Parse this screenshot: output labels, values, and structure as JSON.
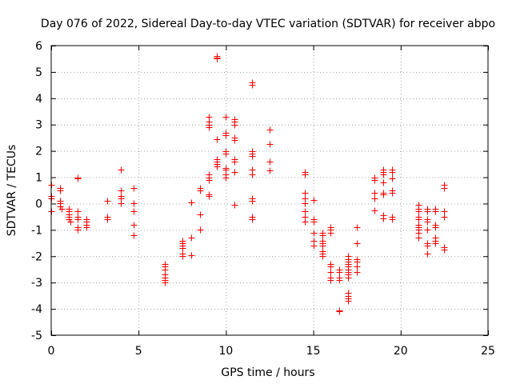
{
  "chart_data": {
    "type": "scatter",
    "title": "Day 076 of 2022, Sidereal Day-to-day VTEC variation (SDTVAR) for receiver abpo",
    "xlabel": "GPS time / hours",
    "ylabel": "SDTVAR / TECUs",
    "xlim": [
      0,
      25
    ],
    "ylim": [
      -5,
      6
    ],
    "xticks": [
      0,
      5,
      10,
      15,
      20,
      25
    ],
    "yticks": [
      -5,
      -4,
      -3,
      -2,
      -1,
      0,
      1,
      2,
      3,
      4,
      5,
      6
    ],
    "grid": true,
    "marker": "plus",
    "color": "#ff0000",
    "series": [
      {
        "name": "SDTVAR",
        "points": [
          [
            0.0,
            0.7
          ],
          [
            0.0,
            0.3
          ],
          [
            0.0,
            0.2
          ],
          [
            0.0,
            -0.3
          ],
          [
            0.5,
            0.6
          ],
          [
            0.5,
            0.5
          ],
          [
            0.5,
            0.1
          ],
          [
            0.5,
            0.0
          ],
          [
            0.5,
            -0.1
          ],
          [
            0.6,
            -0.2
          ],
          [
            1.0,
            -0.2
          ],
          [
            1.0,
            -0.3
          ],
          [
            1.0,
            -0.4
          ],
          [
            1.0,
            -0.5
          ],
          [
            1.0,
            -0.6
          ],
          [
            1.1,
            -0.7
          ],
          [
            1.5,
            1.0
          ],
          [
            1.5,
            0.95
          ],
          [
            1.5,
            -0.3
          ],
          [
            1.5,
            -0.5
          ],
          [
            1.5,
            -0.6
          ],
          [
            1.5,
            -0.9
          ],
          [
            1.5,
            -1.0
          ],
          [
            2.0,
            -0.6
          ],
          [
            2.0,
            -0.7
          ],
          [
            2.0,
            -0.8
          ],
          [
            2.0,
            -0.9
          ],
          [
            3.2,
            0.1
          ],
          [
            3.2,
            -0.5
          ],
          [
            3.2,
            -0.6
          ],
          [
            4.0,
            1.3
          ],
          [
            4.0,
            0.5
          ],
          [
            4.0,
            0.3
          ],
          [
            4.0,
            0.2
          ],
          [
            4.0,
            0.0
          ],
          [
            4.7,
            0.6
          ],
          [
            4.7,
            0.0
          ],
          [
            4.7,
            -0.3
          ],
          [
            4.7,
            -0.8
          ],
          [
            4.7,
            -1.2
          ],
          [
            6.5,
            -2.3
          ],
          [
            6.5,
            -2.4
          ],
          [
            6.5,
            -2.5
          ],
          [
            6.5,
            -2.7
          ],
          [
            6.5,
            -2.8
          ],
          [
            6.5,
            -2.9
          ],
          [
            6.5,
            -3.0
          ],
          [
            7.5,
            -1.4
          ],
          [
            7.5,
            -1.5
          ],
          [
            7.5,
            -1.6
          ],
          [
            7.5,
            -1.7
          ],
          [
            7.5,
            -1.9
          ],
          [
            7.5,
            -2.0
          ],
          [
            8.0,
            0.05
          ],
          [
            8.0,
            -1.3
          ],
          [
            8.0,
            -1.95
          ],
          [
            8.5,
            0.6
          ],
          [
            8.5,
            0.5
          ],
          [
            8.5,
            -0.4
          ],
          [
            8.5,
            -1.0
          ],
          [
            9.0,
            3.3
          ],
          [
            9.0,
            3.1
          ],
          [
            9.0,
            3.0
          ],
          [
            9.0,
            2.9
          ],
          [
            9.0,
            1.1
          ],
          [
            9.0,
            1.0
          ],
          [
            9.0,
            0.9
          ],
          [
            9.0,
            0.35
          ],
          [
            9.0,
            0.3
          ],
          [
            9.5,
            5.6
          ],
          [
            9.5,
            5.55
          ],
          [
            9.5,
            5.5
          ],
          [
            9.5,
            2.45
          ],
          [
            9.5,
            1.7
          ],
          [
            9.5,
            1.6
          ],
          [
            9.5,
            1.5
          ],
          [
            9.5,
            1.4
          ],
          [
            10.0,
            3.3
          ],
          [
            10.0,
            2.7
          ],
          [
            10.0,
            2.6
          ],
          [
            10.0,
            2.0
          ],
          [
            10.0,
            1.9
          ],
          [
            10.0,
            1.35
          ],
          [
            10.0,
            1.3
          ],
          [
            10.0,
            1.1
          ],
          [
            10.0,
            1.0
          ],
          [
            10.5,
            3.2
          ],
          [
            10.5,
            3.1
          ],
          [
            10.5,
            3.0
          ],
          [
            10.5,
            2.5
          ],
          [
            10.5,
            2.4
          ],
          [
            10.5,
            1.7
          ],
          [
            10.5,
            1.6
          ],
          [
            10.5,
            1.2
          ],
          [
            10.5,
            -0.05
          ],
          [
            11.5,
            4.6
          ],
          [
            11.5,
            4.5
          ],
          [
            11.5,
            2.0
          ],
          [
            11.5,
            1.9
          ],
          [
            11.5,
            1.8
          ],
          [
            11.5,
            1.3
          ],
          [
            11.5,
            1.1
          ],
          [
            11.5,
            0.2
          ],
          [
            11.5,
            0.1
          ],
          [
            11.5,
            -0.5
          ],
          [
            11.5,
            -0.6
          ],
          [
            12.5,
            2.8
          ],
          [
            12.5,
            2.25
          ],
          [
            12.5,
            1.6
          ],
          [
            12.5,
            1.25
          ],
          [
            14.5,
            1.2
          ],
          [
            14.5,
            1.1
          ],
          [
            14.5,
            0.4
          ],
          [
            14.5,
            0.2
          ],
          [
            14.5,
            0.0
          ],
          [
            14.5,
            -0.3
          ],
          [
            14.5,
            -0.5
          ],
          [
            14.5,
            -0.7
          ],
          [
            15.0,
            0.15
          ],
          [
            15.0,
            -0.6
          ],
          [
            15.0,
            -0.7
          ],
          [
            15.0,
            -1.1
          ],
          [
            15.0,
            -1.4
          ],
          [
            15.0,
            -1.6
          ],
          [
            15.5,
            -1.1
          ],
          [
            15.5,
            -1.2
          ],
          [
            15.5,
            -1.4
          ],
          [
            15.5,
            -1.5
          ],
          [
            15.5,
            -1.6
          ],
          [
            15.5,
            -1.8
          ],
          [
            15.5,
            -1.9
          ],
          [
            15.5,
            -2.0
          ],
          [
            16.0,
            -0.9
          ],
          [
            16.0,
            -1.0
          ],
          [
            16.0,
            -1.1
          ],
          [
            16.0,
            -2.3
          ],
          [
            16.0,
            -2.4
          ],
          [
            16.0,
            -2.6
          ],
          [
            16.0,
            -2.8
          ],
          [
            16.0,
            -2.9
          ],
          [
            16.5,
            -2.5
          ],
          [
            16.5,
            -2.6
          ],
          [
            16.5,
            -2.8
          ],
          [
            16.5,
            -2.9
          ],
          [
            16.5,
            -4.05
          ],
          [
            16.5,
            -4.1
          ],
          [
            17.0,
            -2.0
          ],
          [
            17.0,
            -2.1
          ],
          [
            17.0,
            -2.2
          ],
          [
            17.0,
            -2.3
          ],
          [
            17.0,
            -2.4
          ],
          [
            17.0,
            -2.5
          ],
          [
            17.0,
            -2.6
          ],
          [
            17.0,
            -2.7
          ],
          [
            17.0,
            -2.8
          ],
          [
            17.0,
            -3.4
          ],
          [
            17.0,
            -3.5
          ],
          [
            17.0,
            -3.6
          ],
          [
            17.0,
            -3.7
          ],
          [
            17.5,
            -0.9
          ],
          [
            17.5,
            -1.5
          ],
          [
            17.5,
            -2.1
          ],
          [
            17.5,
            -2.2
          ],
          [
            17.5,
            -2.4
          ],
          [
            17.5,
            -2.6
          ],
          [
            18.5,
            1.0
          ],
          [
            18.5,
            0.9
          ],
          [
            18.5,
            0.4
          ],
          [
            18.5,
            0.2
          ],
          [
            18.5,
            -0.25
          ],
          [
            19.0,
            1.3
          ],
          [
            19.0,
            1.2
          ],
          [
            19.0,
            1.1
          ],
          [
            19.0,
            0.8
          ],
          [
            19.0,
            0.4
          ],
          [
            19.0,
            0.35
          ],
          [
            19.0,
            -0.45
          ],
          [
            19.0,
            -0.55
          ],
          [
            19.5,
            1.3
          ],
          [
            19.5,
            1.2
          ],
          [
            19.5,
            0.95
          ],
          [
            19.5,
            0.5
          ],
          [
            19.5,
            0.4
          ],
          [
            19.5,
            -0.5
          ],
          [
            19.5,
            -0.6
          ],
          [
            21.0,
            -0.05
          ],
          [
            21.0,
            -0.2
          ],
          [
            21.0,
            -0.3
          ],
          [
            21.0,
            -0.5
          ],
          [
            21.0,
            -0.6
          ],
          [
            21.0,
            -0.8
          ],
          [
            21.0,
            -0.9
          ],
          [
            21.0,
            -1.0
          ],
          [
            21.0,
            -1.1
          ],
          [
            21.0,
            -1.3
          ],
          [
            21.5,
            -0.2
          ],
          [
            21.5,
            -0.3
          ],
          [
            21.5,
            -0.6
          ],
          [
            21.5,
            -0.7
          ],
          [
            21.5,
            -1.0
          ],
          [
            21.5,
            -1.5
          ],
          [
            21.5,
            -1.6
          ],
          [
            21.5,
            -1.9
          ],
          [
            22.0,
            -0.2
          ],
          [
            22.0,
            -0.3
          ],
          [
            22.0,
            -0.8
          ],
          [
            22.0,
            -0.9
          ],
          [
            22.0,
            -1.3
          ],
          [
            22.0,
            -1.4
          ],
          [
            22.0,
            -1.5
          ],
          [
            22.5,
            0.7
          ],
          [
            22.5,
            0.6
          ],
          [
            22.5,
            -0.3
          ],
          [
            22.5,
            -0.5
          ],
          [
            22.5,
            -1.65
          ],
          [
            22.5,
            -1.75
          ]
        ]
      }
    ]
  }
}
